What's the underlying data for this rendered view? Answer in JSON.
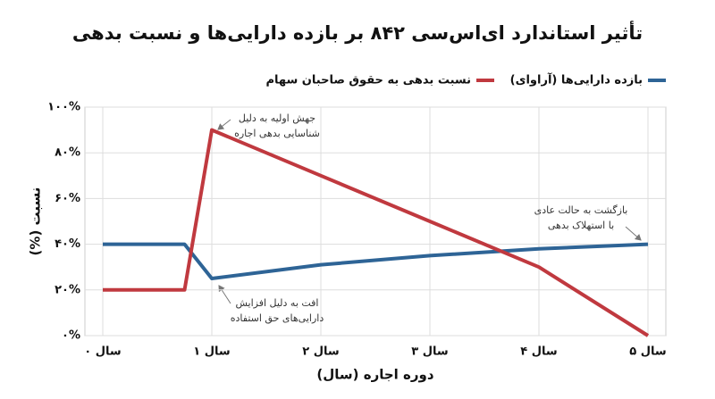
{
  "chart_data": {
    "type": "line",
    "title": "تأثیر استاندارد ای‌اس‌سی ۸۴۲ بر بازده دارایی‌ها و نسبت بدهی",
    "x_label": "دوره اجاره (سال)",
    "y_label": "نسبت (%)",
    "x": [
      0,
      0.75,
      1,
      2,
      3,
      4,
      5
    ],
    "series": [
      {
        "name": "بازده دارایی‌ها (آراوای)",
        "color": "#2e6496",
        "values": [
          40,
          40,
          25,
          31,
          35,
          38,
          40
        ]
      },
      {
        "name": "نسبت بدهی به حقوق صاحبان سهام",
        "color": "#c0393f",
        "values": [
          20,
          20,
          90,
          70,
          50,
          30,
          0
        ]
      }
    ],
    "xlim": [
      0,
      5
    ],
    "xticks": [
      {
        "value": 0,
        "label": "سال ۰"
      },
      {
        "value": 1,
        "label": "سال ۱"
      },
      {
        "value": 2,
        "label": "سال ۲"
      },
      {
        "value": 3,
        "label": "سال ۳"
      },
      {
        "value": 4,
        "label": "سال ۴"
      },
      {
        "value": 5,
        "label": "سال ۵"
      }
    ],
    "ylim": [
      0,
      100
    ],
    "yticks": [
      {
        "value": 0,
        "label": "۰%"
      },
      {
        "value": 20,
        "label": "۲۰%"
      },
      {
        "value": 40,
        "label": "۴۰%"
      },
      {
        "value": 60,
        "label": "۶۰%"
      },
      {
        "value": 80,
        "label": "۸۰%"
      },
      {
        "value": 100,
        "label": "۱۰۰%"
      }
    ],
    "grid": true,
    "legend": "top-right",
    "annotations": [
      {
        "text": [
          "جهش اولیه به دلیل",
          "شناسایی بدهی اجاره"
        ]
      },
      {
        "text": [
          "افت به دلیل افزایش",
          "دارایی‌های حق استفاده"
        ]
      },
      {
        "text": [
          "بازگشت به حالت عادی",
          "با استهلاک بدهی"
        ]
      }
    ]
  }
}
